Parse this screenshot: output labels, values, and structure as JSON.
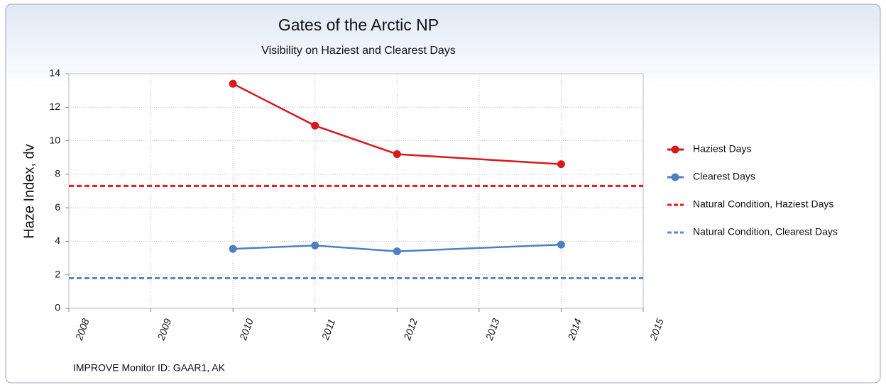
{
  "chart_data": {
    "type": "line",
    "title": "Gates of the Arctic NP",
    "subtitle": "Visibility on Haziest and Clearest Days",
    "y_label": "Haze Index, dv",
    "footnote": "IMPROVE Monitor ID: GAAR1, AK",
    "xlim": [
      2008,
      2015
    ],
    "xticks": [
      2008,
      2009,
      2010,
      2011,
      2012,
      2013,
      2014,
      2015
    ],
    "ylim": [
      0,
      14
    ],
    "yticks": [
      0,
      2,
      4,
      6,
      8,
      10,
      12,
      14
    ],
    "grid": true,
    "legend": "right",
    "series": [
      {
        "name": "Haziest Days",
        "color": "#d7191c",
        "style": "solid",
        "marker": true,
        "x": [
          2010,
          2011,
          2012,
          2014
        ],
        "values": [
          13.4,
          10.9,
          9.2,
          8.6
        ]
      },
      {
        "name": "Clearest Days",
        "color": "#4f7fbf",
        "style": "solid",
        "marker": true,
        "x": [
          2010,
          2011,
          2012,
          2014
        ],
        "values": [
          3.55,
          3.75,
          3.4,
          3.8
        ]
      },
      {
        "name": "Natural Condition, Haziest Days",
        "color": "#e8191c",
        "style": "dashed",
        "marker": false,
        "x": [
          2008,
          2015
        ],
        "values": [
          7.3,
          7.3
        ]
      },
      {
        "name": "Natural Condition, Clearest Days",
        "color": "#5d88c6",
        "style": "dashed",
        "marker": false,
        "x": [
          2008,
          2015
        ],
        "values": [
          1.8,
          1.8
        ]
      }
    ]
  }
}
